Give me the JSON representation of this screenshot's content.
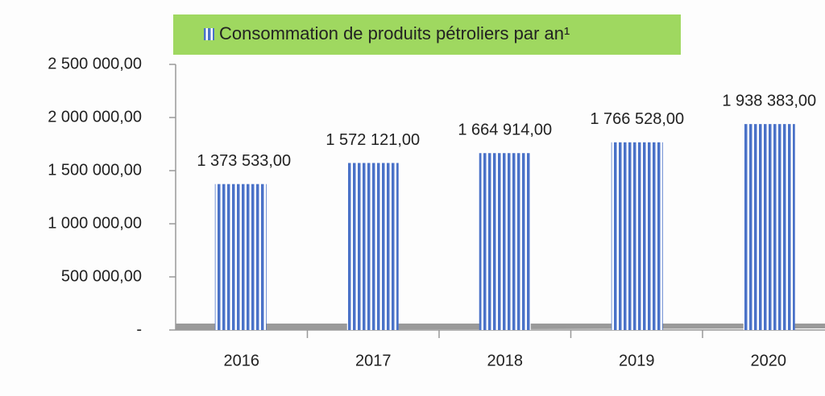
{
  "chart_data": {
    "type": "bar",
    "categories": [
      "2016",
      "2017",
      "2018",
      "2019",
      "2020"
    ],
    "series": [
      {
        "name": "Consommation de produits pétroliers par an¹",
        "color": "#4a72c8",
        "values": [
          1373533,
          1572121,
          1664914,
          1766528,
          1938383
        ],
        "value_labels": [
          "1 373 533,00",
          "1 572 121,00",
          "1 664 914,00",
          "1 766 528,00",
          "1 938 383,00"
        ]
      }
    ],
    "ylim": [
      0,
      2500000
    ],
    "yticks": [
      {
        "value": 0,
        "label": "-"
      },
      {
        "value": 500000,
        "label": "500 000,00"
      },
      {
        "value": 1000000,
        "label": "1 000 000,00"
      },
      {
        "value": 1500000,
        "label": "1 500 000,00"
      },
      {
        "value": 2000000,
        "label": "2 000 000,00"
      },
      {
        "value": 2500000,
        "label": "2 500 000,00"
      }
    ],
    "grid": false,
    "legend": "top"
  }
}
